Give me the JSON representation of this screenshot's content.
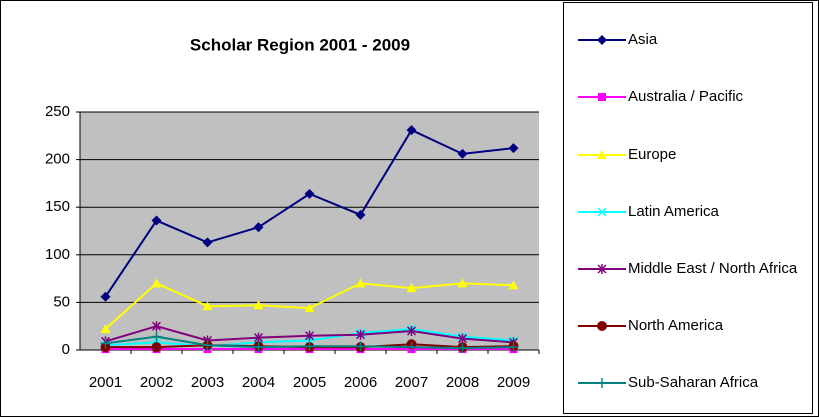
{
  "chart_data": {
    "type": "line",
    "title": "Scholar Region 2001 - 2009",
    "categories": [
      "2001",
      "2002",
      "2003",
      "2004",
      "2005",
      "2006",
      "2007",
      "2008",
      "2009"
    ],
    "ylim": [
      0,
      250
    ],
    "yticks": [
      0,
      50,
      100,
      150,
      200,
      250
    ],
    "grid": true,
    "series": [
      {
        "name": "Asia",
        "color": "#000080",
        "marker": "diamond",
        "values": [
          56,
          136,
          113,
          129,
          164,
          142,
          231,
          206,
          212
        ]
      },
      {
        "name": "Australia / Pacific",
        "color": "#ff00ff",
        "marker": "square",
        "values": [
          1,
          1,
          1,
          1,
          1,
          1,
          1,
          1,
          1
        ]
      },
      {
        "name": "Europe",
        "color": "#ffff00",
        "marker": "triangle",
        "values": [
          22,
          70,
          46,
          47,
          44,
          70,
          65,
          70,
          68
        ]
      },
      {
        "name": "Latin America",
        "color": "#00ffff",
        "marker": "x",
        "values": [
          5,
          8,
          4,
          8,
          10,
          18,
          22,
          14,
          10
        ]
      },
      {
        "name": "Middle East / North Africa",
        "color": "#800080",
        "marker": "star",
        "values": [
          9,
          25,
          10,
          13,
          15,
          16,
          20,
          12,
          8
        ]
      },
      {
        "name": "North America",
        "color": "#800000",
        "marker": "circle",
        "values": [
          3,
          3,
          5,
          4,
          3,
          3,
          6,
          3,
          4
        ]
      },
      {
        "name": "Sub-Saharan Africa",
        "color": "#008080",
        "marker": "plus",
        "values": [
          7,
          14,
          5,
          3,
          4,
          4,
          3,
          2,
          3
        ]
      }
    ]
  }
}
